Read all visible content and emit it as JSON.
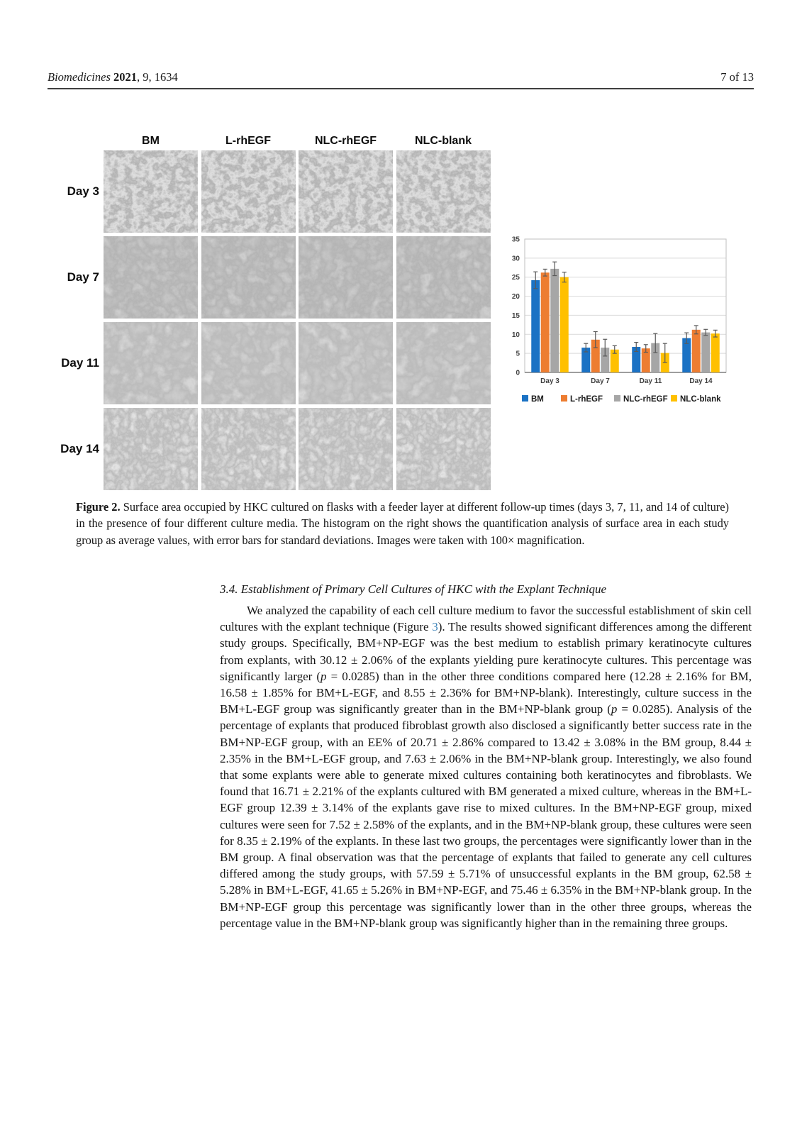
{
  "header": {
    "journal_italic": "Biomedicines",
    "year_bold": "2021",
    "citation_rest": ", 9, 1634",
    "page_info": "7 of 13"
  },
  "figure": {
    "column_headers": [
      "BM",
      "L-rhEGF",
      "NLC-rhEGF",
      "NLC-blank"
    ],
    "row_labels": [
      "Day 3",
      "Day 7",
      "Day 11",
      "Day 14"
    ]
  },
  "chart_data": {
    "type": "bar",
    "categories": [
      "Day 3",
      "Day 7",
      "Day 11",
      "Day 14"
    ],
    "series": [
      {
        "name": "BM",
        "color": "#1B72C4",
        "values": [
          24.2,
          6.5,
          6.7,
          9.0
        ],
        "errors": [
          2.2,
          1.1,
          1.2,
          1.4
        ]
      },
      {
        "name": "L-rhEGF",
        "color": "#ED7D31",
        "values": [
          26.2,
          8.6,
          6.3,
          11.2
        ],
        "errors": [
          0.9,
          2.1,
          1.0,
          1.1
        ]
      },
      {
        "name": "NLC-rhEGF",
        "color": "#A6A6A6",
        "values": [
          27.2,
          6.5,
          7.7,
          10.5
        ],
        "errors": [
          1.8,
          2.2,
          2.5,
          0.8
        ]
      },
      {
        "name": "NLC-blank",
        "color": "#FFC000",
        "values": [
          25.0,
          6.0,
          5.1,
          10.2
        ],
        "errors": [
          1.3,
          1.0,
          2.5,
          0.9
        ]
      }
    ],
    "title": "",
    "xlabel": "",
    "ylabel": "",
    "ylim": [
      0,
      35
    ],
    "ytick_step": 5,
    "grid": true,
    "legend_position": "bottom",
    "error_bars": true,
    "colors": {
      "gridline": "#D9D9D9",
      "plot_border": "#BFBFBF",
      "axis": "#7F7F7F",
      "tick_text": "#404040",
      "error_bar": "#595959",
      "legend_text": "#1A1A1A"
    }
  },
  "caption": {
    "label": "Figure 2.",
    "text": " Surface area occupied by HKC cultured on flasks with a feeder layer at different follow-up times (days 3, 7, 11, and 14 of culture) in the presence of four different culture media.  The histogram on the right shows the quantification analysis of surface area in each study group as average values, with error bars for standard deviations.  Images were taken with 100× magnification."
  },
  "section": {
    "heading": "3.4. Establishment of Primary Cell Cultures of HKC with the Explant Technique"
  },
  "paragraph": {
    "pre": "We analyzed the capability of each cell culture medium to favor the successful establishment of skin cell cultures with the explant technique (Figure ",
    "link": "3",
    "post": ").  The results showed significant differences among the different study groups.  Specifically, BM+NP-EGF was the best medium to establish primary keratinocyte cultures from explants, with 30.12 ± 2.06% of the explants yielding pure keratinocyte cultures.  This percentage was significantly larger (p = 0.0285) than in the other three conditions compared here (12.28 ± 2.16% for BM, 16.58 ± 1.85% for BM+L-EGF, and 8.55 ± 2.36% for BM+NP-blank). Interestingly, culture success in the BM+L-EGF group was significantly greater than in the BM+NP-blank group (p = 0.0285).  Analysis of the percentage of explants that produced fibroblast growth also disclosed a significantly better success rate in the BM+NP-EGF group, with an EE% of 20.71 ± 2.86% compared to 13.42 ± 3.08% in the BM group, 8.44 ± 2.35% in the BM+L-EGF group, and 7.63 ± 2.06% in the BM+NP-blank group.  Interestingly, we also found that some explants were able to generate mixed cultures containing both keratinocytes and fibroblasts.  We found that 16.71 ± 2.21% of the explants cultured with BM generated a mixed culture, whereas in the BM+L-EGF group 12.39 ± 3.14% of the explants gave rise to mixed cultures.  In the BM+NP-EGF group, mixed cultures were seen for 7.52 ± 2.58% of the explants, and in the BM+NP-blank group, these cultures were seen for 8.35 ± 2.19% of the explants.  In these last two groups, the percentages were significantly lower than in the BM group.  A final observation was that the percentage of explants that failed to generate any cell cultures differed among the study groups, with 57.59 ± 5.71% of unsuccessful explants in the BM group, 62.58 ± 5.28% in BM+L-EGF, 41.65 ± 5.26% in BM+NP-EGF, and 75.46 ± 6.35% in the BM+NP-blank group.  In the BM+NP-EGF group this percentage was significantly lower than in the other three groups, whereas the percentage value in the BM+NP-blank group was significantly higher than in the remaining three groups."
  }
}
